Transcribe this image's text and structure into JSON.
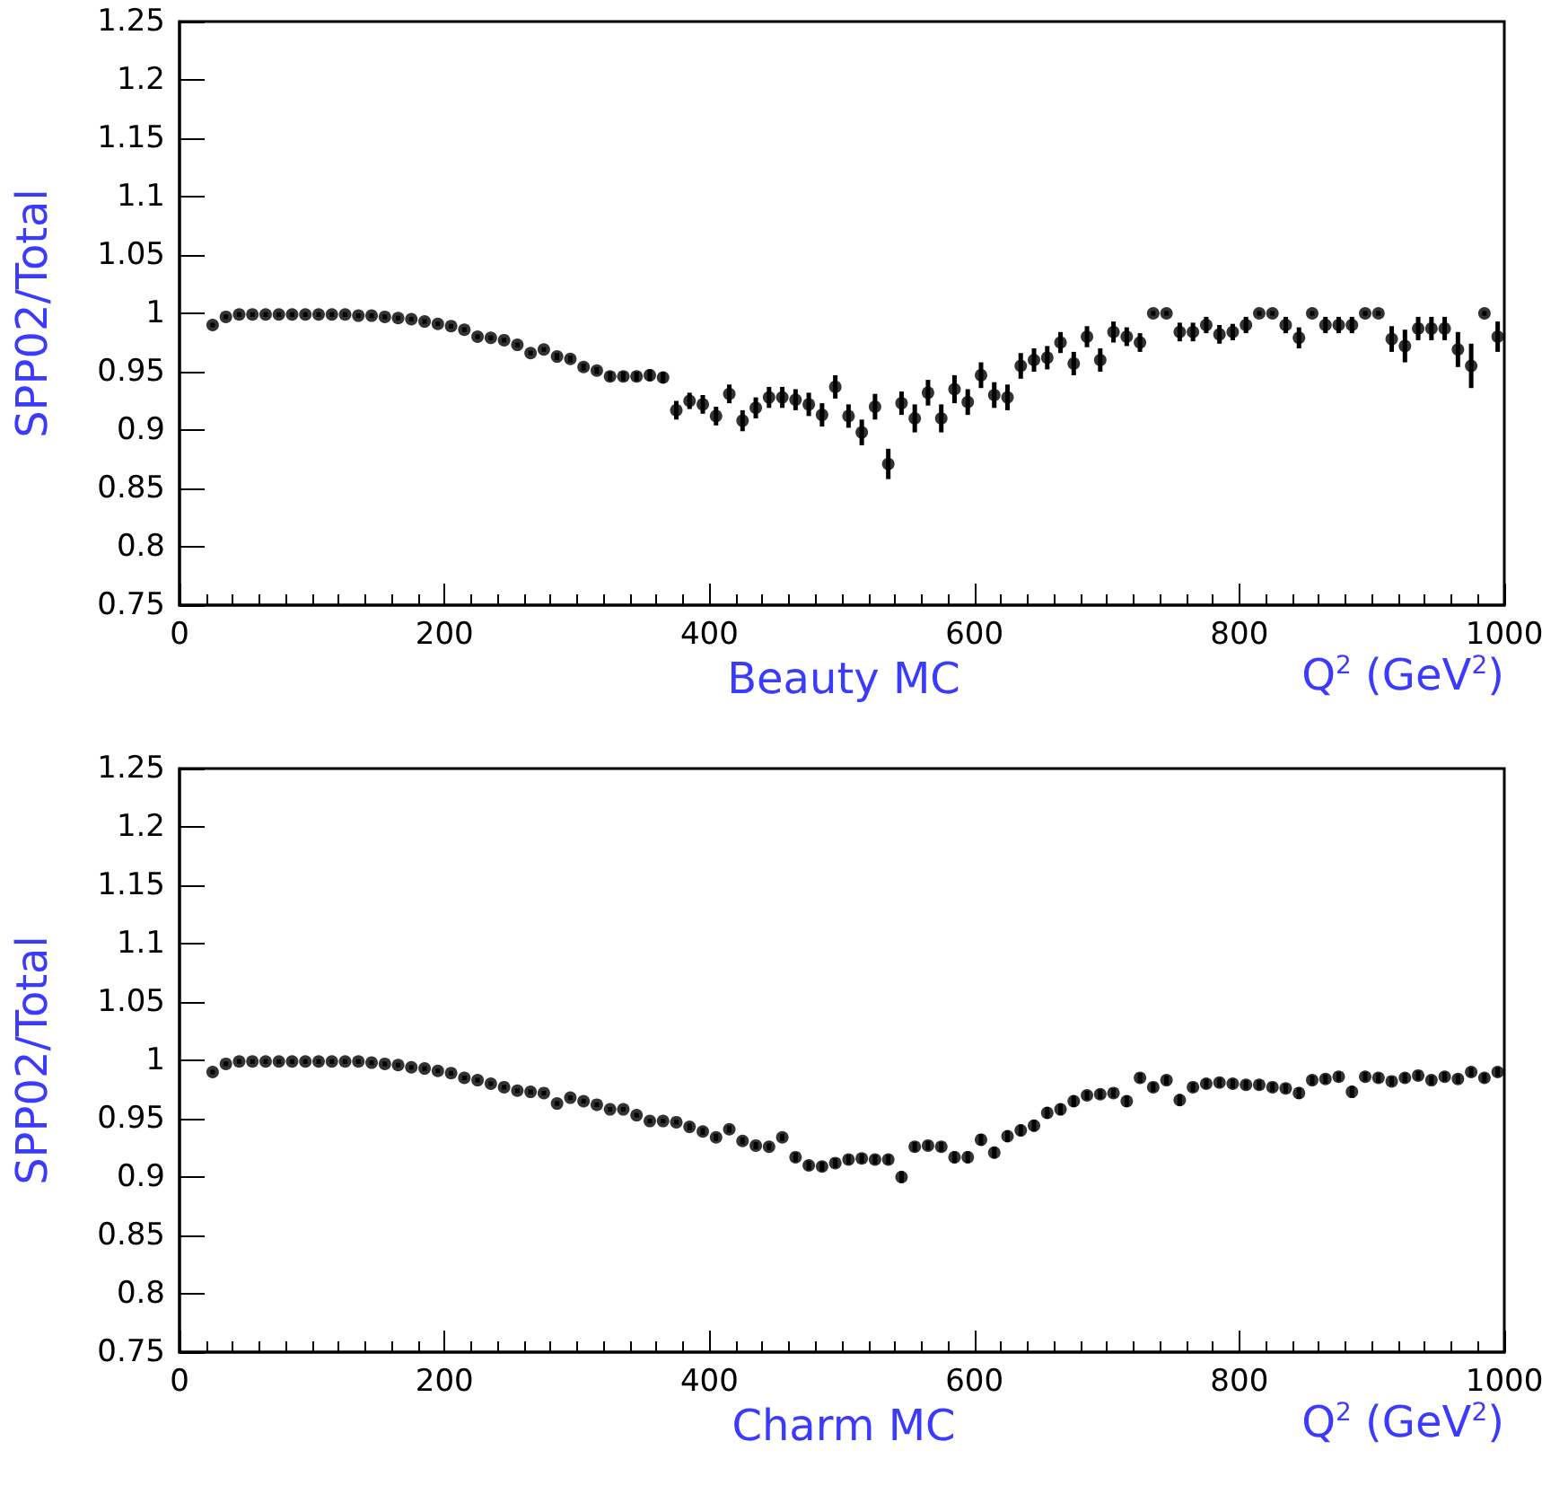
{
  "chart_data": [
    {
      "type": "scatter",
      "ylabel": "SPP02/Total",
      "xlabel": "Q$^{2}$ (GeV$^{2}$)",
      "annotations": [
        "Beauty MC"
      ],
      "marker": "circle",
      "grid": false,
      "x": [
        25,
        35,
        45,
        55,
        65,
        75,
        85,
        95,
        105,
        115,
        125,
        135,
        145,
        155,
        165,
        175,
        185,
        195,
        205,
        215,
        225,
        235,
        245,
        255,
        265,
        275,
        285,
        295,
        305,
        315,
        325,
        335,
        345,
        355,
        365,
        375,
        385,
        395,
        405,
        415,
        425,
        435,
        445,
        455,
        465,
        475,
        485,
        495,
        505,
        515,
        525,
        535,
        545,
        555,
        565,
        575,
        585,
        595,
        605,
        615,
        625,
        635,
        645,
        655,
        665,
        675,
        685,
        695,
        705,
        715,
        725,
        735,
        745,
        755,
        765,
        775,
        785,
        795,
        805,
        815,
        825,
        835,
        845,
        855,
        865,
        875,
        885,
        895,
        905,
        915,
        925,
        935,
        945,
        955,
        965,
        975,
        985,
        995
      ],
      "series": [
        {
          "color": "#000000",
          "values": [
            0.99,
            0.997,
            0.999,
            0.999,
            0.999,
            0.999,
            0.999,
            0.999,
            0.999,
            0.999,
            0.999,
            0.998,
            0.998,
            0.997,
            0.996,
            0.995,
            0.993,
            0.991,
            0.989,
            0.986,
            0.98,
            0.979,
            0.977,
            0.973,
            0.966,
            0.969,
            0.963,
            0.961,
            0.954,
            0.951,
            0.946,
            0.946,
            0.946,
            0.947,
            0.945,
            0.917,
            0.925,
            0.922,
            0.912,
            0.931,
            0.908,
            0.919,
            0.928,
            0.928,
            0.926,
            0.922,
            0.913,
            0.937,
            0.912,
            0.898,
            0.92,
            0.871,
            0.923,
            0.91,
            0.932,
            0.91,
            0.935,
            0.924,
            0.947,
            0.93,
            0.928,
            0.955,
            0.96,
            0.962,
            0.975,
            0.957,
            0.98,
            0.96,
            0.984,
            0.98,
            0.975,
            1.0,
            1.0,
            0.984,
            0.984,
            0.99,
            0.982,
            0.984,
            0.99,
            1.0,
            1.0,
            0.99,
            0.979,
            1.0,
            0.99,
            0.99,
            0.99,
            1.0,
            1.0,
            0.978,
            0.972,
            0.987,
            0.987,
            0.987,
            0.969,
            0.955,
            1.0,
            0.98
          ],
          "errors": [
            0.002,
            0.002,
            0.002,
            0.002,
            0.002,
            0.002,
            0.002,
            0.002,
            0.002,
            0.002,
            0.002,
            0.002,
            0.002,
            0.002,
            0.002,
            0.002,
            0.002,
            0.002,
            0.002,
            0.002,
            0.002,
            0.002,
            0.002,
            0.002,
            0.002,
            0.002,
            0.003,
            0.003,
            0.003,
            0.003,
            0.004,
            0.004,
            0.004,
            0.005,
            0.005,
            0.008,
            0.007,
            0.008,
            0.008,
            0.008,
            0.009,
            0.009,
            0.009,
            0.009,
            0.009,
            0.01,
            0.01,
            0.01,
            0.01,
            0.011,
            0.011,
            0.013,
            0.01,
            0.012,
            0.011,
            0.012,
            0.012,
            0.011,
            0.011,
            0.011,
            0.011,
            0.011,
            0.01,
            0.01,
            0.009,
            0.01,
            0.009,
            0.01,
            0.009,
            0.008,
            0.008,
            0.002,
            0.002,
            0.008,
            0.008,
            0.007,
            0.008,
            0.007,
            0.007,
            0.002,
            0.002,
            0.007,
            0.009,
            0.002,
            0.007,
            0.007,
            0.007,
            0.002,
            0.002,
            0.011,
            0.014,
            0.01,
            0.01,
            0.01,
            0.015,
            0.019,
            0.002,
            0.013
          ]
        }
      ],
      "xlim": [
        0,
        1000
      ],
      "xticks": [
        0,
        200,
        400,
        600,
        800,
        1000
      ],
      "ylim": [
        0.75,
        1.25
      ],
      "yticks": [
        0.75,
        0.8,
        0.85,
        0.9,
        0.95,
        1,
        1.05,
        1.1,
        1.15,
        1.2,
        1.25
      ]
    },
    {
      "type": "scatter",
      "ylabel": "SPP02/Total",
      "xlabel": "Q$^{2}$ (GeV$^{2}$)",
      "annotations": [
        "Charm MC"
      ],
      "marker": "circle",
      "grid": false,
      "x": [
        25,
        35,
        45,
        55,
        65,
        75,
        85,
        95,
        105,
        115,
        125,
        135,
        145,
        155,
        165,
        175,
        185,
        195,
        205,
        215,
        225,
        235,
        245,
        255,
        265,
        275,
        285,
        295,
        305,
        315,
        325,
        335,
        345,
        355,
        365,
        375,
        385,
        395,
        405,
        415,
        425,
        435,
        445,
        455,
        465,
        475,
        485,
        495,
        505,
        515,
        525,
        535,
        545,
        555,
        565,
        575,
        585,
        595,
        605,
        615,
        625,
        635,
        645,
        655,
        665,
        675,
        685,
        695,
        705,
        715,
        725,
        735,
        745,
        755,
        765,
        775,
        785,
        795,
        805,
        815,
        825,
        835,
        845,
        855,
        865,
        875,
        885,
        895,
        905,
        915,
        925,
        935,
        945,
        955,
        965,
        975,
        985,
        995
      ],
      "series": [
        {
          "color": "#000000",
          "values": [
            0.99,
            0.997,
            0.999,
            0.999,
            0.999,
            0.999,
            0.999,
            0.999,
            0.999,
            0.999,
            0.999,
            0.999,
            0.998,
            0.997,
            0.996,
            0.994,
            0.993,
            0.991,
            0.989,
            0.985,
            0.983,
            0.98,
            0.977,
            0.974,
            0.973,
            0.972,
            0.963,
            0.968,
            0.965,
            0.962,
            0.958,
            0.958,
            0.953,
            0.948,
            0.948,
            0.947,
            0.943,
            0.939,
            0.934,
            0.941,
            0.931,
            0.927,
            0.926,
            0.934,
            0.917,
            0.91,
            0.909,
            0.912,
            0.915,
            0.916,
            0.915,
            0.915,
            0.9,
            0.926,
            0.927,
            0.926,
            0.917,
            0.917,
            0.932,
            0.921,
            0.935,
            0.94,
            0.944,
            0.955,
            0.958,
            0.965,
            0.97,
            0.971,
            0.972,
            0.965,
            0.985,
            0.977,
            0.983,
            0.966,
            0.977,
            0.98,
            0.981,
            0.98,
            0.979,
            0.979,
            0.977,
            0.976,
            0.972,
            0.983,
            0.984,
            0.986,
            0.973,
            0.986,
            0.985,
            0.982,
            0.985,
            0.987,
            0.983,
            0.986,
            0.984,
            0.99,
            0.985,
            0.99
          ],
          "errors": [
            0.002,
            0.002,
            0.002,
            0.002,
            0.002,
            0.002,
            0.002,
            0.002,
            0.002,
            0.002,
            0.002,
            0.002,
            0.002,
            0.002,
            0.002,
            0.002,
            0.002,
            0.002,
            0.002,
            0.002,
            0.002,
            0.002,
            0.002,
            0.002,
            0.002,
            0.002,
            0.002,
            0.002,
            0.002,
            0.002,
            0.002,
            0.002,
            0.002,
            0.002,
            0.002,
            0.002,
            0.003,
            0.003,
            0.003,
            0.003,
            0.003,
            0.003,
            0.003,
            0.003,
            0.004,
            0.004,
            0.004,
            0.004,
            0.004,
            0.004,
            0.004,
            0.004,
            0.005,
            0.004,
            0.004,
            0.004,
            0.005,
            0.005,
            0.005,
            0.005,
            0.005,
            0.005,
            0.005,
            0.005,
            0.005,
            0.005,
            0.004,
            0.004,
            0.004,
            0.005,
            0.004,
            0.004,
            0.004,
            0.005,
            0.004,
            0.004,
            0.004,
            0.004,
            0.004,
            0.004,
            0.004,
            0.004,
            0.005,
            0.004,
            0.004,
            0.004,
            0.005,
            0.004,
            0.004,
            0.004,
            0.004,
            0.004,
            0.004,
            0.004,
            0.004,
            0.004,
            0.004,
            0.004
          ]
        }
      ],
      "xlim": [
        0,
        1000
      ],
      "xticks": [
        0,
        200,
        400,
        600,
        800,
        1000
      ],
      "ylim": [
        0.75,
        1.25
      ],
      "yticks": [
        0.75,
        0.8,
        0.85,
        0.9,
        0.95,
        1,
        1.05,
        1.1,
        1.15,
        1.2,
        1.25
      ]
    }
  ]
}
